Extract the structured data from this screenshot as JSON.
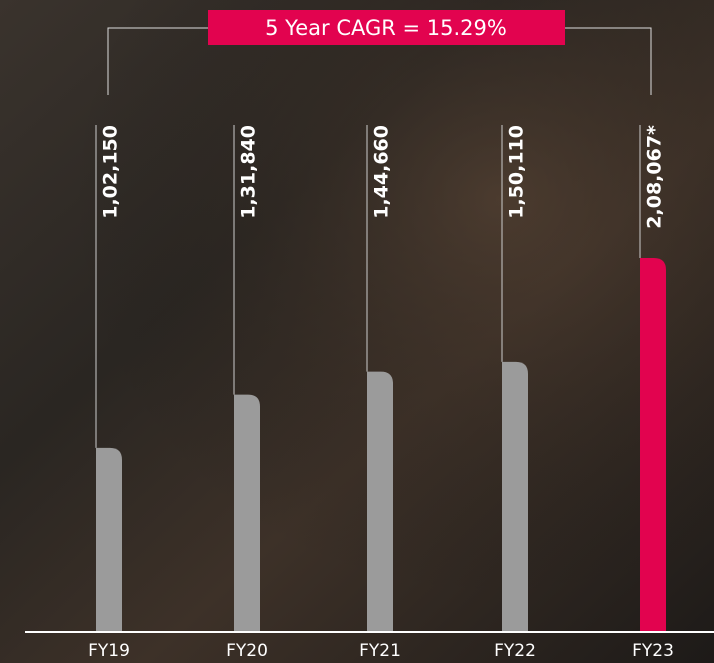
{
  "chart_data": {
    "type": "bar",
    "annotation": "5 Year CAGR = 15.29%",
    "categories": [
      "FY19",
      "FY20",
      "FY21",
      "FY22",
      "FY23"
    ],
    "values": [
      102150,
      131840,
      144660,
      150110,
      208067
    ],
    "value_labels": [
      "1,02,150",
      "1,31,840",
      "1,44,660",
      "1,50,110",
      "2,08,067*"
    ],
    "colors": [
      "#9b9b9b",
      "#9b9b9b",
      "#9b9b9b",
      "#9b9b9b",
      "#e2034f"
    ],
    "annotation_color": "#e2034f"
  }
}
